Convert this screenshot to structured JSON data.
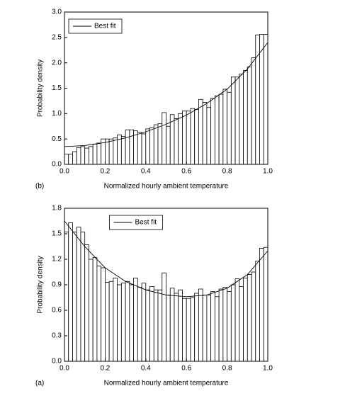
{
  "chart_data": [
    {
      "type": "histogram",
      "panel_label": "(b)",
      "x_label": "Normalized hourly ambient temperature",
      "y_label": "Probability density",
      "bins": [
        0,
        0.02,
        0.04,
        0.06,
        0.08,
        0.1,
        0.12,
        0.14,
        0.16,
        0.18,
        0.2,
        0.22,
        0.24,
        0.26,
        0.28,
        0.3,
        0.32,
        0.34,
        0.36,
        0.38,
        0.4,
        0.42,
        0.44,
        0.46,
        0.48,
        0.5,
        0.52,
        0.54,
        0.56,
        0.58,
        0.6,
        0.62,
        0.64,
        0.66,
        0.68,
        0.7,
        0.72,
        0.74,
        0.76,
        0.78,
        0.8,
        0.82,
        0.84,
        0.86,
        0.88,
        0.9,
        0.92,
        0.94,
        0.96,
        0.98,
        1
      ],
      "values": [
        0.2,
        0.2,
        0.25,
        0.33,
        0.35,
        0.32,
        0.35,
        0.4,
        0.42,
        0.5,
        0.5,
        0.5,
        0.52,
        0.58,
        0.55,
        0.68,
        0.68,
        0.66,
        0.63,
        0.6,
        0.7,
        0.72,
        0.78,
        0.8,
        1.02,
        0.75,
        0.98,
        0.9,
        1.0,
        1.05,
        1.05,
        1.1,
        1.08,
        1.28,
        1.22,
        1.12,
        1.3,
        1.35,
        1.38,
        1.48,
        1.42,
        1.72,
        1.72,
        1.78,
        1.85,
        1.92,
        2.1,
        2.55,
        2.56,
        2.56
      ],
      "series": [
        {
          "name": "Best fit",
          "color": "#000000",
          "x": [
            0,
            0.1,
            0.2,
            0.3,
            0.4,
            0.5,
            0.6,
            0.7,
            0.8,
            0.9,
            1.0
          ],
          "values": [
            0.35,
            0.37,
            0.43,
            0.52,
            0.64,
            0.79,
            0.97,
            1.2,
            1.48,
            1.88,
            2.4
          ]
        }
      ],
      "xlim": [
        0,
        1
      ],
      "xticks": [
        {
          "value": 0,
          "label": "0.0"
        },
        0.2,
        0.4,
        0.6,
        0.8,
        {
          "value": 1,
          "label": "1.0"
        }
      ],
      "ylim": [
        0,
        3
      ],
      "yticks": [
        {
          "value": 0,
          "label": "0.0"
        },
        0.5,
        {
          "value": 1,
          "label": "1.0"
        },
        1.5,
        {
          "value": 2,
          "label": "2.0"
        },
        2.5,
        {
          "value": 3,
          "label": "3.0"
        }
      ],
      "legend": "upper-left"
    },
    {
      "type": "histogram",
      "panel_label": "(a)",
      "x_label": "Normalized hourly ambient temperature",
      "y_label": "Probability density",
      "bins": [
        0,
        0.02,
        0.04,
        0.06,
        0.08,
        0.1,
        0.12,
        0.14,
        0.16,
        0.18,
        0.2,
        0.22,
        0.24,
        0.26,
        0.28,
        0.3,
        0.32,
        0.34,
        0.36,
        0.38,
        0.4,
        0.42,
        0.44,
        0.46,
        0.48,
        0.5,
        0.52,
        0.54,
        0.56,
        0.58,
        0.6,
        0.62,
        0.64,
        0.66,
        0.68,
        0.7,
        0.72,
        0.74,
        0.76,
        0.78,
        0.8,
        0.82,
        0.84,
        0.86,
        0.88,
        0.9,
        0.92,
        0.94,
        0.96,
        0.98,
        1
      ],
      "values": [
        1.52,
        1.63,
        1.52,
        1.58,
        1.52,
        1.37,
        1.2,
        1.22,
        1.12,
        1.1,
        0.93,
        0.94,
        0.98,
        0.9,
        0.92,
        0.94,
        0.9,
        0.98,
        0.87,
        0.92,
        0.84,
        0.88,
        0.84,
        0.84,
        1.04,
        0.78,
        0.86,
        0.8,
        0.84,
        0.74,
        0.74,
        0.75,
        0.8,
        0.85,
        0.78,
        0.78,
        0.82,
        0.76,
        0.85,
        0.87,
        0.82,
        0.9,
        0.97,
        0.88,
        0.98,
        1.02,
        1.05,
        1.18,
        1.33,
        1.34
      ],
      "series": [
        {
          "name": "Best fit",
          "color": "#000000",
          "x": [
            0,
            0.1,
            0.2,
            0.3,
            0.4,
            0.5,
            0.6,
            0.7,
            0.8,
            0.9,
            1.0
          ],
          "values": [
            1.65,
            1.35,
            1.1,
            0.94,
            0.84,
            0.78,
            0.76,
            0.78,
            0.86,
            1.02,
            1.3
          ]
        }
      ],
      "xlim": [
        0,
        1
      ],
      "xticks": [
        {
          "value": 0,
          "label": "0.0"
        },
        0.2,
        0.4,
        0.6,
        0.8,
        {
          "value": 1,
          "label": "1.0"
        }
      ],
      "ylim": [
        0,
        1.8
      ],
      "yticks": [
        {
          "value": 0,
          "label": "0.0"
        },
        0.3,
        0.6,
        0.9,
        1.2,
        1.5,
        1.8
      ],
      "legend": "upper-center"
    }
  ]
}
